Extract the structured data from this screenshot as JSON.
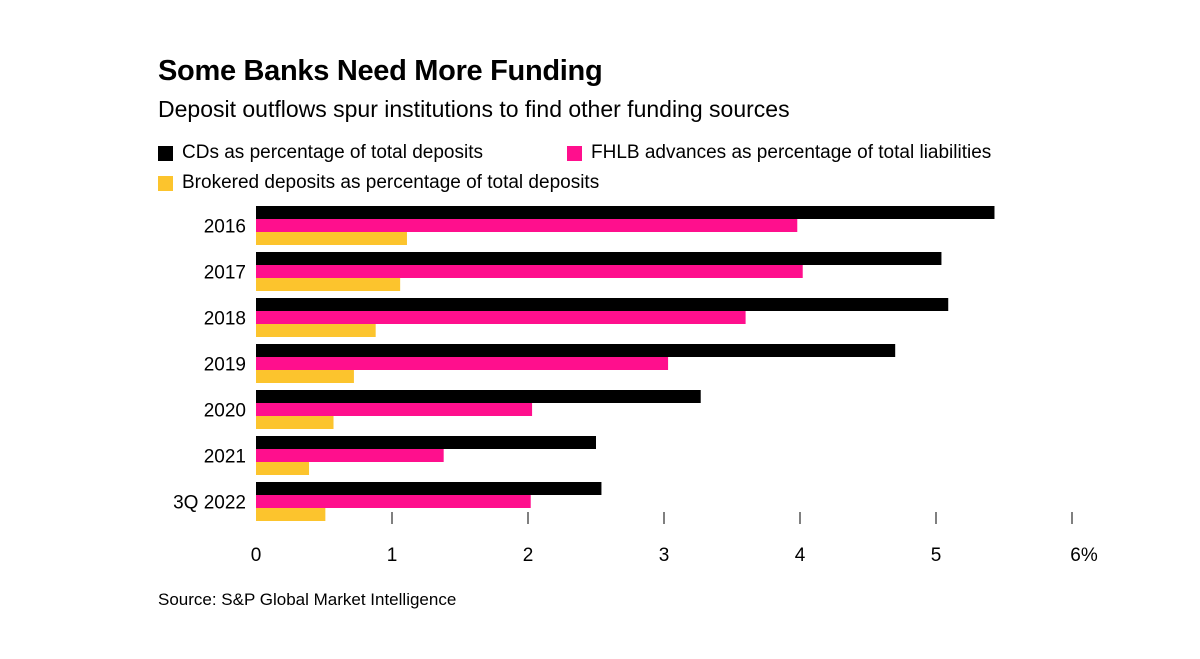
{
  "chart_data": {
    "type": "bar",
    "orientation": "horizontal",
    "title": "Some Banks Need More Funding",
    "subtitle": "Deposit outflows spur institutions to find other funding sources",
    "categories": [
      "2016",
      "2017",
      "2018",
      "2019",
      "2020",
      "2021",
      "3Q 2022"
    ],
    "series": [
      {
        "name": "CDs as percentage of total deposits",
        "color": "#000000",
        "values": [
          5.43,
          5.04,
          5.09,
          4.7,
          3.27,
          2.5,
          2.54
        ]
      },
      {
        "name": "FHLB advances as percentage of total liabilities",
        "color": "#ff0f8d",
        "values": [
          3.98,
          4.02,
          3.6,
          3.03,
          2.03,
          1.38,
          2.02
        ]
      },
      {
        "name": "Brokered deposits as percentage of total deposits",
        "color": "#fcc42d",
        "values": [
          1.11,
          1.06,
          0.88,
          0.72,
          0.57,
          0.39,
          0.51
        ]
      }
    ],
    "xlim": [
      0,
      6
    ],
    "xticks": [
      "0",
      "1",
      "2",
      "3",
      "4",
      "5",
      "6%"
    ],
    "xlabel": "",
    "ylabel": "",
    "grid": false,
    "legend_placement": "top-left",
    "source": "Source: S&P Global Market Intelligence"
  }
}
